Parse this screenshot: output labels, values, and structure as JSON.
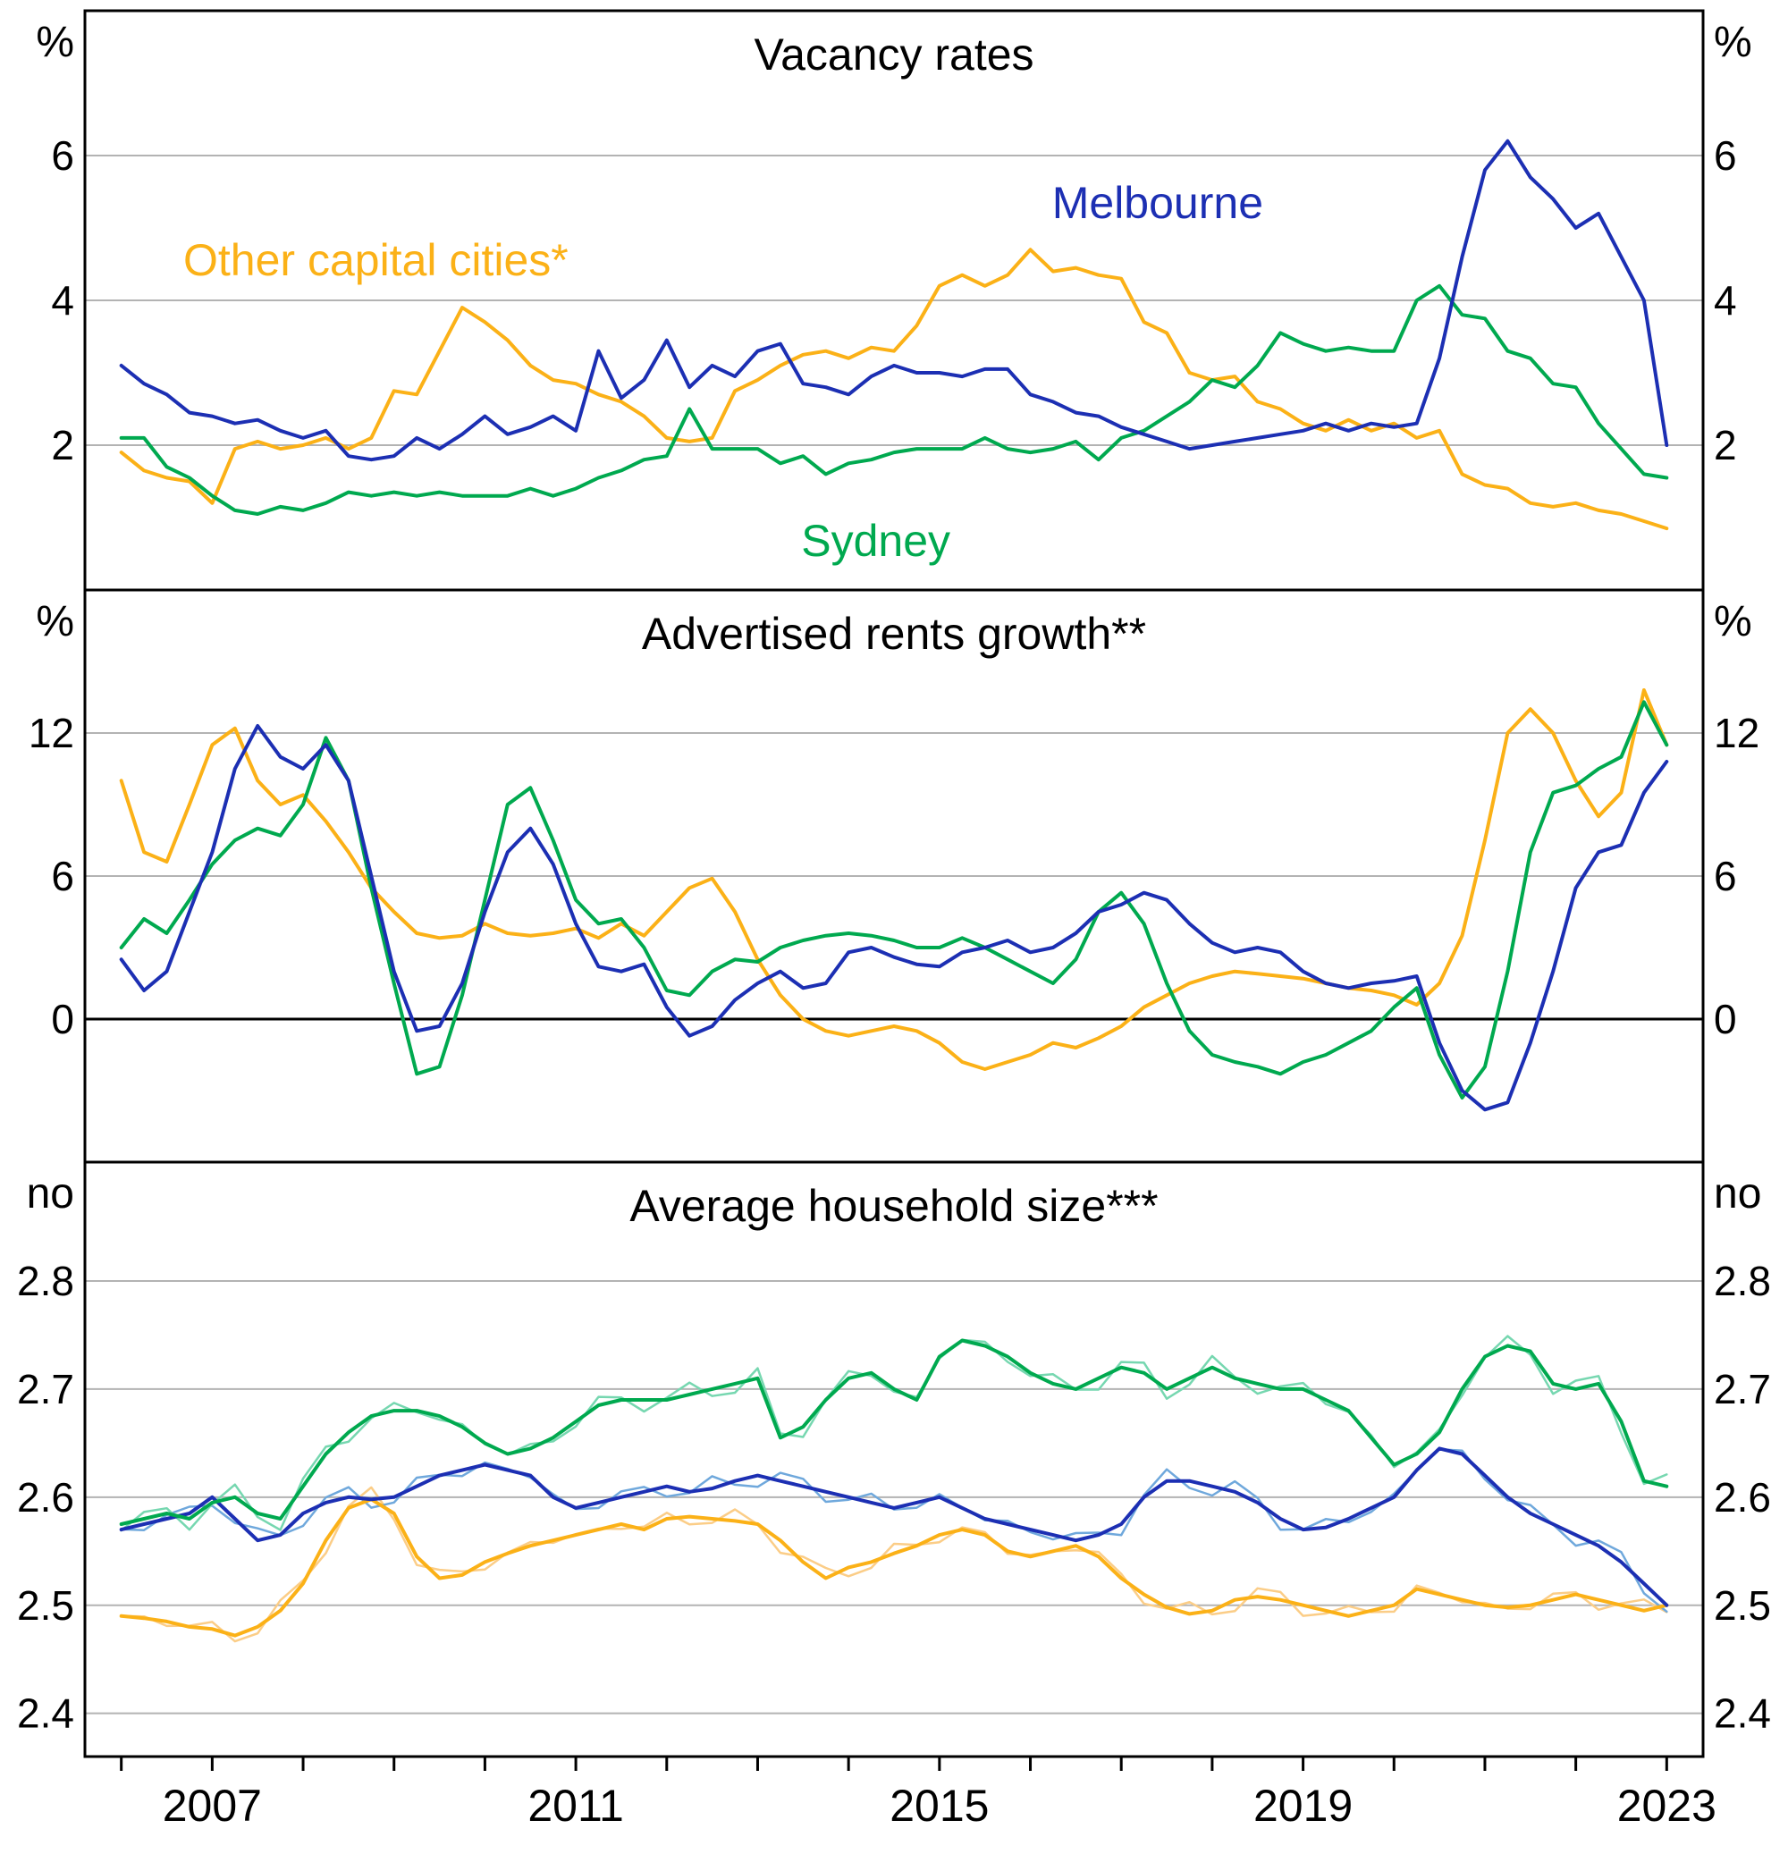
{
  "figure": {
    "background": "#ffffff",
    "grid_color": "#b3b3b3",
    "frame_color": "#000000",
    "x_start": 2006.0,
    "x_step": 0.25,
    "xlim": [
      2005.6,
      2023.4
    ],
    "x_tick_years": [
      2006,
      2007,
      2008,
      2009,
      2010,
      2011,
      2012,
      2013,
      2014,
      2015,
      2016,
      2017,
      2018,
      2019,
      2020,
      2021,
      2022,
      2023
    ],
    "x_labels": [
      {
        "text": "2007",
        "year": 2007
      },
      {
        "text": "2011",
        "year": 2011
      },
      {
        "text": "2015",
        "year": 2015
      },
      {
        "text": "2019",
        "year": 2019
      },
      {
        "text": "2023",
        "year": 2023
      }
    ]
  },
  "series_colors": {
    "melbourne": "#1c2fb3",
    "sydney": "#00a94f",
    "other_capitals": "#fbb117",
    "melbourne_halo": "#6fa8dc",
    "sydney_halo": "#76d7b0",
    "other_capitals_halo": "#fbcd87"
  },
  "chart_data": [
    {
      "type": "line",
      "title": "Vacancy rates",
      "unit_left": "%",
      "unit_right": "%",
      "ylim": [
        0,
        8
      ],
      "yticks": [
        2,
        4,
        6
      ],
      "ytick_decimals": 0,
      "zero_line": false,
      "noisy_overlay": false,
      "annotations": [
        {
          "text": "Melbourne",
          "x": 2017.4,
          "y": 5.35,
          "color": "#1c2fb3"
        },
        {
          "text": "Other capital cities*",
          "x": 2008.8,
          "y": 4.55,
          "color": "#fbb117"
        },
        {
          "text": "Sydney",
          "x": 2014.3,
          "y": 0.68,
          "color": "#00a94f"
        }
      ],
      "series": [
        {
          "name": "Other capital cities*",
          "color": "#fbb117",
          "values": [
            1.9,
            1.65,
            1.55,
            1.5,
            1.2,
            1.95,
            2.05,
            1.95,
            2.0,
            2.1,
            1.95,
            2.1,
            2.75,
            2.7,
            3.3,
            3.9,
            3.7,
            3.45,
            3.1,
            2.9,
            2.85,
            2.7,
            2.6,
            2.4,
            2.1,
            2.05,
            2.1,
            2.75,
            2.9,
            3.1,
            3.25,
            3.3,
            3.2,
            3.35,
            3.3,
            3.65,
            4.2,
            4.35,
            4.2,
            4.35,
            4.7,
            4.4,
            4.45,
            4.35,
            4.3,
            3.7,
            3.55,
            3.0,
            2.9,
            2.95,
            2.6,
            2.5,
            2.3,
            2.2,
            2.35,
            2.2,
            2.3,
            2.1,
            2.2,
            1.6,
            1.45,
            1.4,
            1.2,
            1.15,
            1.2,
            1.1,
            1.05,
            0.95,
            0.85
          ]
        },
        {
          "name": "Sydney",
          "color": "#00a94f",
          "values": [
            2.1,
            2.1,
            1.7,
            1.55,
            1.3,
            1.1,
            1.05,
            1.15,
            1.1,
            1.2,
            1.35,
            1.3,
            1.35,
            1.3,
            1.35,
            1.3,
            1.3,
            1.3,
            1.4,
            1.3,
            1.4,
            1.55,
            1.65,
            1.8,
            1.85,
            2.5,
            1.95,
            1.95,
            1.95,
            1.75,
            1.85,
            1.6,
            1.75,
            1.8,
            1.9,
            1.95,
            1.95,
            1.95,
            2.1,
            1.95,
            1.9,
            1.95,
            2.05,
            1.8,
            2.1,
            2.2,
            2.4,
            2.6,
            2.9,
            2.8,
            3.1,
            3.55,
            3.4,
            3.3,
            3.35,
            3.3,
            3.3,
            4.0,
            4.2,
            3.8,
            3.75,
            3.3,
            3.2,
            2.85,
            2.8,
            2.3,
            1.95,
            1.6,
            1.55
          ]
        },
        {
          "name": "Melbourne",
          "color": "#1c2fb3",
          "values": [
            3.1,
            2.85,
            2.7,
            2.45,
            2.4,
            2.3,
            2.35,
            2.2,
            2.1,
            2.2,
            1.85,
            1.8,
            1.85,
            2.1,
            1.95,
            2.15,
            2.4,
            2.15,
            2.25,
            2.4,
            2.2,
            3.3,
            2.65,
            2.9,
            3.45,
            2.8,
            3.1,
            2.95,
            3.3,
            3.4,
            2.85,
            2.8,
            2.7,
            2.95,
            3.1,
            3.0,
            3.0,
            2.95,
            3.05,
            3.05,
            2.7,
            2.6,
            2.45,
            2.4,
            2.25,
            2.15,
            2.05,
            1.95,
            2.0,
            2.05,
            2.1,
            2.15,
            2.2,
            2.3,
            2.2,
            2.3,
            2.25,
            2.3,
            3.2,
            4.6,
            5.8,
            6.2,
            5.7,
            5.4,
            5.0,
            5.2,
            4.6,
            4.0,
            2.0
          ]
        }
      ]
    },
    {
      "type": "line",
      "title": "Advertised rents growth**",
      "unit_left": "%",
      "unit_right": "%",
      "ylim": [
        -6,
        18
      ],
      "yticks": [
        0,
        6,
        12
      ],
      "ytick_decimals": 0,
      "zero_line": true,
      "noisy_overlay": false,
      "annotations": [],
      "series": [
        {
          "name": "Other capital cities*",
          "color": "#fbb117",
          "values": [
            10.0,
            7.0,
            6.6,
            9.0,
            11.5,
            12.2,
            10.0,
            9.0,
            9.4,
            8.3,
            7.0,
            5.5,
            4.5,
            3.6,
            3.4,
            3.5,
            4.0,
            3.6,
            3.5,
            3.6,
            3.8,
            3.4,
            4.0,
            3.5,
            4.5,
            5.5,
            5.9,
            4.5,
            2.5,
            1.0,
            0.0,
            -0.5,
            -0.7,
            -0.5,
            -0.3,
            -0.5,
            -1.0,
            -1.8,
            -2.1,
            -1.8,
            -1.5,
            -1.0,
            -1.2,
            -0.8,
            -0.3,
            0.5,
            1.0,
            1.5,
            1.8,
            2.0,
            1.9,
            1.8,
            1.7,
            1.5,
            1.3,
            1.2,
            1.0,
            0.6,
            1.5,
            3.5,
            7.5,
            12.0,
            13.0,
            12.0,
            10.0,
            8.5,
            9.5,
            13.8,
            11.5
          ]
        },
        {
          "name": "Sydney",
          "color": "#00a94f",
          "values": [
            3.0,
            4.2,
            3.6,
            5.0,
            6.5,
            7.5,
            8.0,
            7.7,
            9.0,
            11.8,
            10.0,
            5.5,
            1.5,
            -2.3,
            -2.0,
            1.0,
            5.0,
            9.0,
            9.7,
            7.5,
            5.0,
            4.0,
            4.2,
            3.0,
            1.2,
            1.0,
            2.0,
            2.5,
            2.4,
            3.0,
            3.3,
            3.5,
            3.6,
            3.5,
            3.3,
            3.0,
            3.0,
            3.4,
            3.0,
            2.5,
            2.0,
            1.5,
            2.5,
            4.5,
            5.3,
            4.0,
            1.5,
            -0.5,
            -1.5,
            -1.8,
            -2.0,
            -2.3,
            -1.8,
            -1.5,
            -1.0,
            -0.5,
            0.5,
            1.3,
            -1.5,
            -3.3,
            -2.0,
            2.0,
            7.0,
            9.5,
            9.8,
            10.5,
            11.0,
            13.3,
            11.5
          ]
        },
        {
          "name": "Melbourne",
          "color": "#1c2fb3",
          "values": [
            2.5,
            1.2,
            2.0,
            4.5,
            7.0,
            10.5,
            12.3,
            11.0,
            10.5,
            11.5,
            10.0,
            6.0,
            2.0,
            -0.5,
            -0.3,
            1.5,
            4.5,
            7.0,
            8.0,
            6.5,
            4.0,
            2.2,
            2.0,
            2.3,
            0.5,
            -0.7,
            -0.3,
            0.8,
            1.5,
            2.0,
            1.3,
            1.5,
            2.8,
            3.0,
            2.6,
            2.3,
            2.2,
            2.8,
            3.0,
            3.3,
            2.8,
            3.0,
            3.6,
            4.5,
            4.8,
            5.3,
            5.0,
            4.0,
            3.2,
            2.8,
            3.0,
            2.8,
            2.0,
            1.5,
            1.3,
            1.5,
            1.6,
            1.8,
            -1.0,
            -3.0,
            -3.8,
            -3.5,
            -1.0,
            2.0,
            5.5,
            7.0,
            7.3,
            9.5,
            10.8
          ]
        }
      ]
    },
    {
      "type": "line",
      "title": "Average household size***",
      "unit_left": "no",
      "unit_right": "no",
      "ylim": [
        2.36,
        2.91
      ],
      "yticks": [
        2.4,
        2.5,
        2.6,
        2.7,
        2.8
      ],
      "ytick_decimals": 1,
      "zero_line": false,
      "noisy_overlay": true,
      "noise_amplitude": 0.007,
      "annotations": [],
      "series": [
        {
          "name": "Other capital cities*",
          "color": "#fbb117",
          "halo_color": "#fbcd87",
          "values": [
            2.49,
            2.488,
            2.485,
            2.48,
            2.478,
            2.472,
            2.48,
            2.495,
            2.52,
            2.56,
            2.59,
            2.598,
            2.585,
            2.545,
            2.525,
            2.528,
            2.54,
            2.548,
            2.555,
            2.56,
            2.565,
            2.57,
            2.575,
            2.57,
            2.58,
            2.582,
            2.58,
            2.578,
            2.575,
            2.56,
            2.54,
            2.525,
            2.535,
            2.54,
            2.548,
            2.555,
            2.565,
            2.57,
            2.565,
            2.55,
            2.545,
            2.55,
            2.555,
            2.545,
            2.525,
            2.51,
            2.498,
            2.492,
            2.495,
            2.505,
            2.508,
            2.505,
            2.5,
            2.495,
            2.49,
            2.495,
            2.5,
            2.515,
            2.51,
            2.505,
            2.5,
            2.498,
            2.5,
            2.505,
            2.51,
            2.505,
            2.5,
            2.495,
            2.5
          ]
        },
        {
          "name": "Melbourne",
          "color": "#1c2fb3",
          "halo_color": "#6fa8dc",
          "values": [
            2.57,
            2.575,
            2.58,
            2.585,
            2.6,
            2.58,
            2.56,
            2.565,
            2.585,
            2.595,
            2.6,
            2.598,
            2.6,
            2.61,
            2.62,
            2.625,
            2.63,
            2.625,
            2.62,
            2.6,
            2.59,
            2.595,
            2.6,
            2.605,
            2.61,
            2.605,
            2.608,
            2.615,
            2.62,
            2.615,
            2.61,
            2.605,
            2.6,
            2.595,
            2.59,
            2.595,
            2.6,
            2.59,
            2.58,
            2.575,
            2.57,
            2.565,
            2.56,
            2.565,
            2.575,
            2.6,
            2.615,
            2.615,
            2.61,
            2.605,
            2.595,
            2.58,
            2.57,
            2.572,
            2.58,
            2.59,
            2.6,
            2.625,
            2.645,
            2.64,
            2.62,
            2.6,
            2.585,
            2.575,
            2.565,
            2.555,
            2.54,
            2.52,
            2.5
          ]
        },
        {
          "name": "Sydney",
          "color": "#00a94f",
          "halo_color": "#76d7b0",
          "values": [
            2.575,
            2.58,
            2.585,
            2.58,
            2.595,
            2.6,
            2.585,
            2.58,
            2.61,
            2.64,
            2.66,
            2.675,
            2.68,
            2.68,
            2.675,
            2.665,
            2.65,
            2.64,
            2.645,
            2.655,
            2.67,
            2.685,
            2.69,
            2.69,
            2.69,
            2.695,
            2.7,
            2.705,
            2.71,
            2.655,
            2.665,
            2.69,
            2.71,
            2.715,
            2.7,
            2.69,
            2.73,
            2.745,
            2.74,
            2.73,
            2.715,
            2.705,
            2.7,
            2.71,
            2.72,
            2.715,
            2.7,
            2.71,
            2.72,
            2.71,
            2.705,
            2.7,
            2.7,
            2.69,
            2.68,
            2.655,
            2.63,
            2.64,
            2.66,
            2.7,
            2.73,
            2.74,
            2.735,
            2.705,
            2.7,
            2.705,
            2.67,
            2.615,
            2.61
          ]
        }
      ]
    }
  ]
}
